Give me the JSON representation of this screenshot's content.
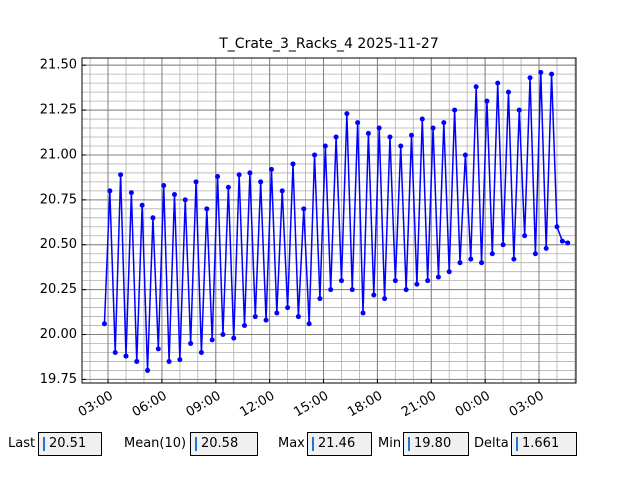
{
  "chart_data": {
    "type": "line",
    "title": "T_Crate_3_Racks_4 2025-11-27",
    "x": [
      2.8,
      3.1,
      3.4,
      3.7,
      4.0,
      4.3,
      4.6,
      4.9,
      5.2,
      5.5,
      5.8,
      6.1,
      6.4,
      6.7,
      7.0,
      7.3,
      7.6,
      7.9,
      8.2,
      8.5,
      8.8,
      9.1,
      9.4,
      9.7,
      10.0,
      10.3,
      10.6,
      10.9,
      11.2,
      11.5,
      11.8,
      12.1,
      12.4,
      12.7,
      13.0,
      13.3,
      13.6,
      13.9,
      14.2,
      14.5,
      14.8,
      15.1,
      15.4,
      15.7,
      16.0,
      16.3,
      16.6,
      16.9,
      17.2,
      17.5,
      17.8,
      18.1,
      18.4,
      18.7,
      19.0,
      19.3,
      19.6,
      19.9,
      20.2,
      20.5,
      20.8,
      21.1,
      21.4,
      21.7,
      22.0,
      22.3,
      22.6,
      22.9,
      23.2,
      23.5,
      23.8,
      24.1,
      24.4,
      24.7,
      25.0,
      25.3,
      25.6,
      25.9,
      26.2,
      26.5,
      26.8,
      27.1,
      27.4,
      27.7,
      28.0,
      28.3,
      28.6
    ],
    "series": [
      {
        "name": "T_Crate_3_Racks_4",
        "color": "#0000ff",
        "values": [
          20.06,
          20.8,
          19.9,
          20.89,
          19.88,
          20.79,
          19.85,
          20.72,
          19.8,
          20.65,
          19.92,
          20.83,
          19.85,
          20.78,
          19.86,
          20.75,
          19.95,
          20.85,
          19.9,
          20.7,
          19.97,
          20.88,
          20.0,
          20.82,
          19.98,
          20.89,
          20.05,
          20.9,
          20.1,
          20.85,
          20.08,
          20.92,
          20.12,
          20.8,
          20.15,
          20.95,
          20.1,
          20.7,
          20.06,
          21.0,
          20.2,
          21.05,
          20.25,
          21.1,
          20.3,
          21.23,
          20.25,
          21.18,
          20.12,
          21.12,
          20.22,
          21.15,
          20.2,
          21.1,
          20.3,
          21.05,
          20.25,
          21.11,
          20.28,
          21.2,
          20.3,
          21.15,
          20.32,
          21.18,
          20.35,
          21.25,
          20.4,
          21.0,
          20.42,
          21.38,
          20.4,
          21.3,
          20.45,
          21.4,
          20.5,
          21.35,
          20.42,
          21.25,
          20.55,
          21.43,
          20.45,
          21.46,
          20.48,
          21.45,
          20.6,
          20.52,
          20.51
        ]
      }
    ],
    "xlim": [
      1.55,
      29.06
    ],
    "xticks": [
      {
        "value": 3,
        "label": "03:00"
      },
      {
        "value": 6,
        "label": "06:00"
      },
      {
        "value": 9,
        "label": "09:00"
      },
      {
        "value": 12,
        "label": "12:00"
      },
      {
        "value": 15,
        "label": "15:00"
      },
      {
        "value": 18,
        "label": "18:00"
      },
      {
        "value": 21,
        "label": "21:00"
      },
      {
        "value": 24,
        "label": "00:00"
      },
      {
        "value": 27,
        "label": "03:00"
      }
    ],
    "ylim": [
      19.73,
      21.54
    ],
    "yticks": [
      {
        "value": 19.75,
        "label": "19.75"
      },
      {
        "value": 20,
        "label": "20.00"
      },
      {
        "value": 20.25,
        "label": "20.25"
      },
      {
        "value": 20.5,
        "label": "20.50"
      },
      {
        "value": 20.75,
        "label": "20.75"
      },
      {
        "value": 21,
        "label": "21.00"
      },
      {
        "value": 21.25,
        "label": "21.25"
      },
      {
        "value": 21.5,
        "label": "21.50"
      }
    ],
    "grid": true,
    "minor_grid": {
      "x_step": 1,
      "y_step": 0.05
    }
  },
  "widgets": [
    {
      "label": "Last",
      "value": "20.51"
    },
    {
      "label": "Mean(10)",
      "value": "20.58"
    },
    {
      "label": "Max",
      "value": "21.46"
    },
    {
      "label": "Min",
      "value": "19.80"
    },
    {
      "label": "Delta",
      "value": "1.661"
    }
  ]
}
